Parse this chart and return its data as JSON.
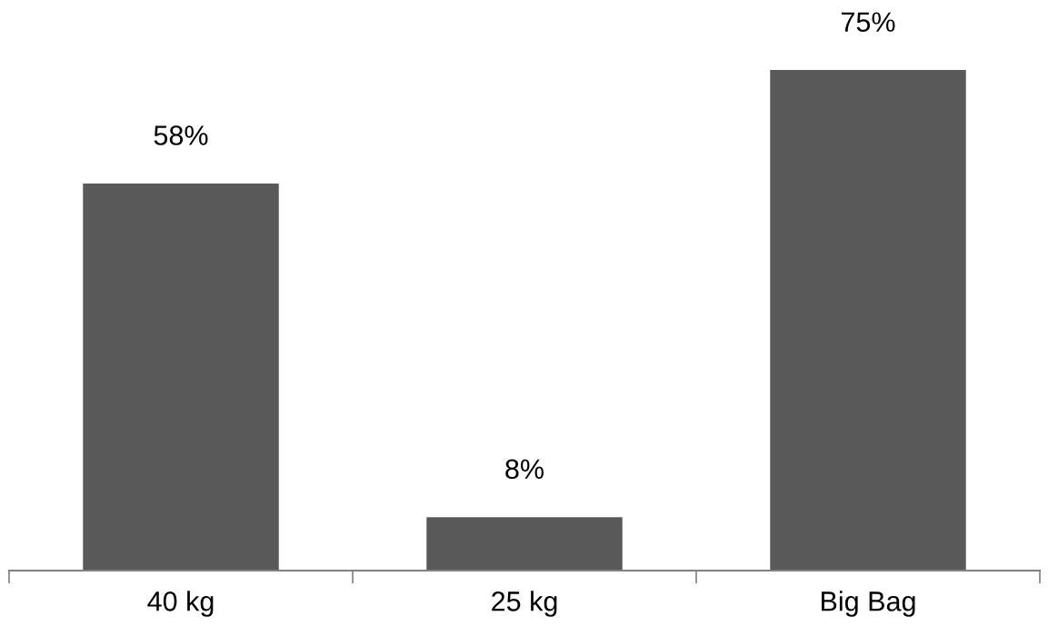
{
  "chart_data": {
    "type": "bar",
    "categories": [
      "40 kg",
      "25 kg",
      "Big Bag"
    ],
    "values": [
      58,
      8,
      75
    ],
    "color": "#595959",
    "value_labels": [
      "58%",
      "8%",
      "75%"
    ],
    "grid": false,
    "legend": false
  }
}
